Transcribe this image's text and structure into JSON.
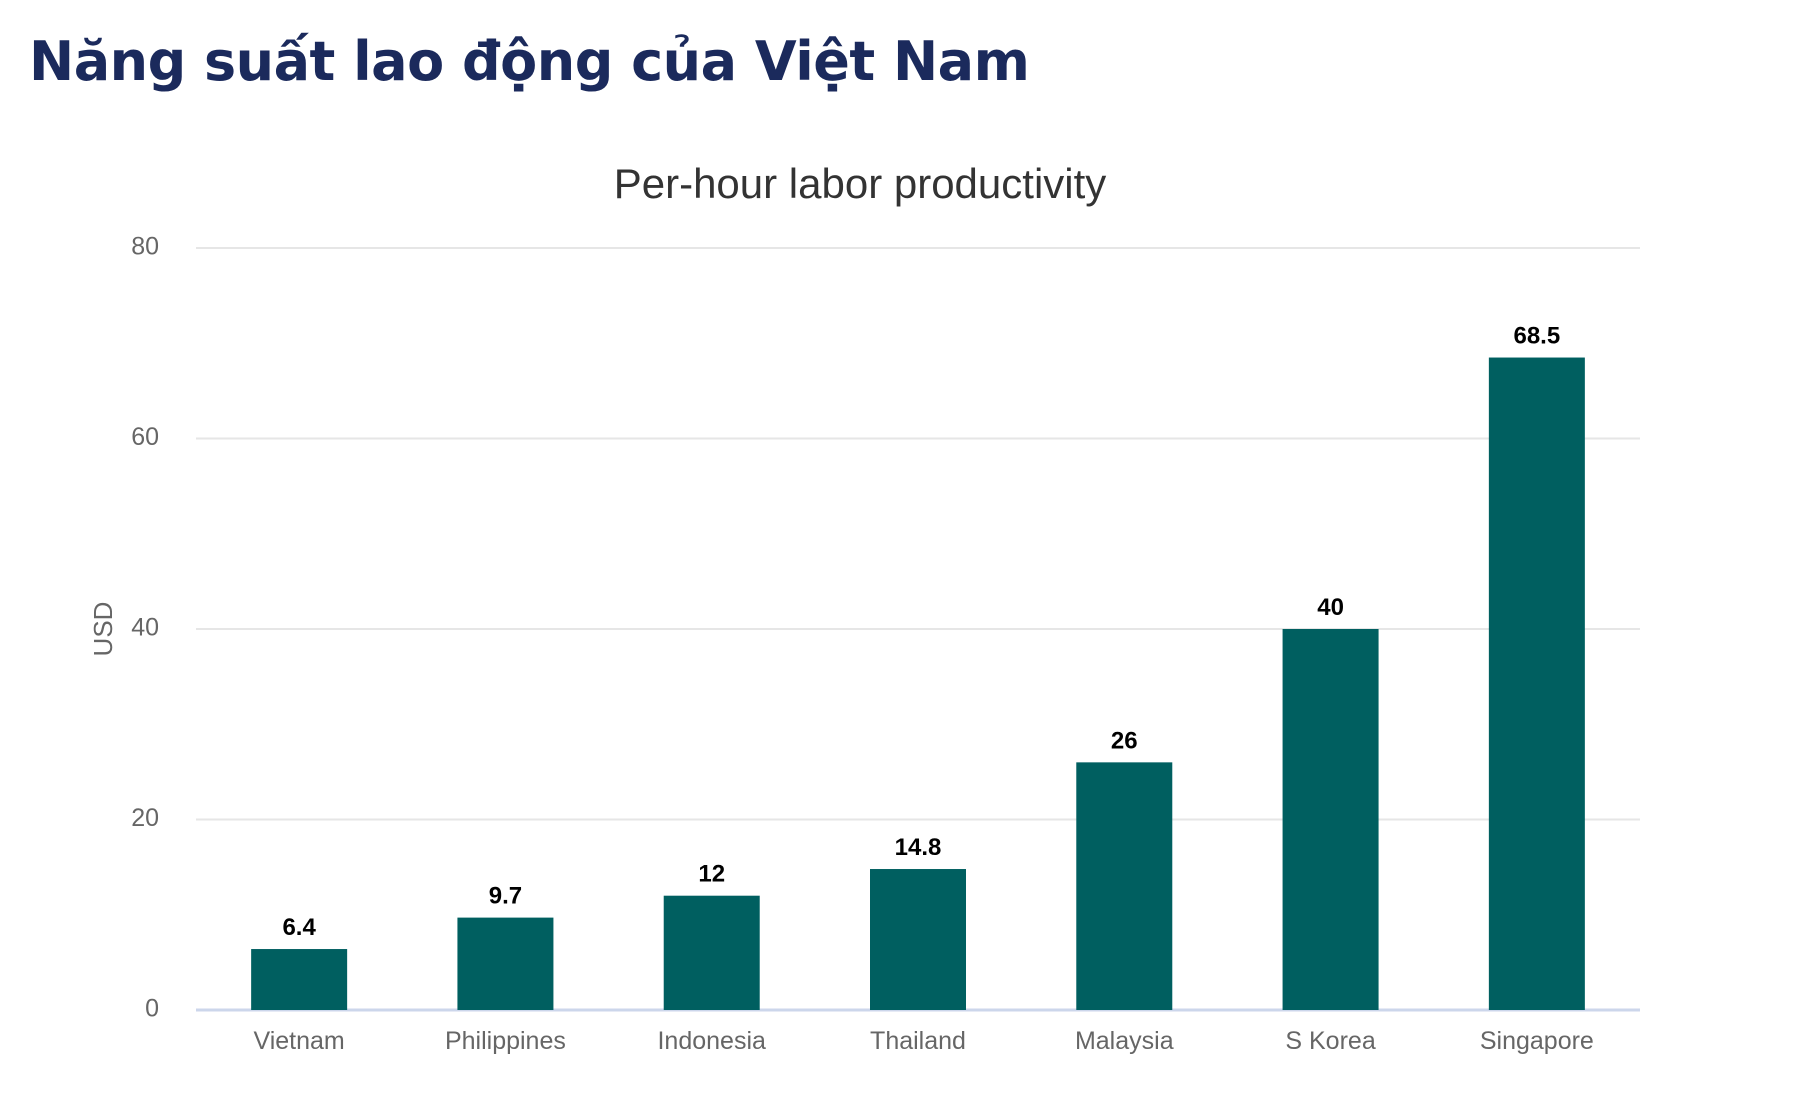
{
  "page": {
    "title": "Năng suất lao động của Việt Nam"
  },
  "chart_data": {
    "type": "bar",
    "title": "Per-hour labor productivity",
    "xlabel": "",
    "ylabel": "USD",
    "categories": [
      "Vietnam",
      "Philippines",
      "Indonesia",
      "Thailand",
      "Malaysia",
      "S Korea",
      "Singapore"
    ],
    "series": [
      {
        "values": [
          6.4,
          9.7,
          12,
          14.8,
          26,
          40,
          68.5
        ]
      }
    ],
    "data_labels": [
      "6.4",
      "9.7",
      "12",
      "14.8",
      "26",
      "40",
      "68.5"
    ],
    "ylim": [
      0,
      80
    ],
    "yticks": [
      0,
      20,
      40,
      60,
      80
    ],
    "grid": true,
    "legend": "none",
    "colors": {
      "bar": "#005f60",
      "grid": "#e6e6e6",
      "baseline": "#ccd6eb",
      "title_color": "#1b2a5c"
    }
  }
}
